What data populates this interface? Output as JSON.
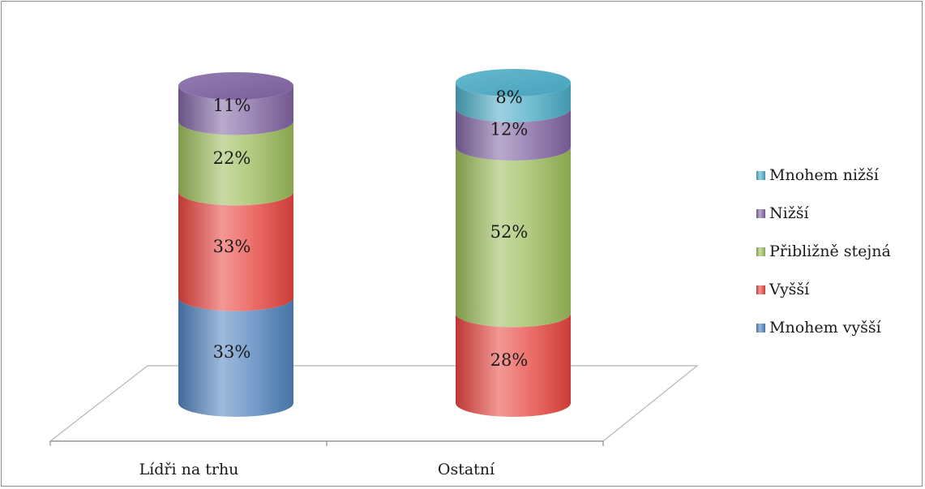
{
  "chart_data": {
    "type": "bar",
    "stacked": true,
    "style": "3d-cylinder",
    "categories": [
      "Lídři na trhu",
      "Ostatní"
    ],
    "series": [
      {
        "name": "Mnohem vyšší",
        "values": [
          33,
          0
        ],
        "color": "#4f81bd"
      },
      {
        "name": "Vyšší",
        "values": [
          33,
          28
        ],
        "color": "#e8443e"
      },
      {
        "name": "Přibližně stejná",
        "values": [
          22,
          52
        ],
        "color": "#9bbb59"
      },
      {
        "name": "Nižší",
        "values": [
          11,
          12
        ],
        "color": "#8064a2"
      },
      {
        "name": "Mnohem nižší",
        "values": [
          0,
          8
        ],
        "color": "#4bacc6"
      }
    ],
    "data_labels": [
      [
        "33%",
        "33%",
        "22%",
        "11%",
        ""
      ],
      [
        "",
        "28%",
        "52%",
        "12%",
        "8%"
      ]
    ],
    "legend": {
      "position": "right",
      "items": [
        "Mnohem nižší",
        "Nižší",
        "Přibližně stejná",
        "Vyšší",
        "Mnohem vyšší"
      ]
    },
    "grid": false,
    "ylim": [
      0,
      100
    ]
  }
}
